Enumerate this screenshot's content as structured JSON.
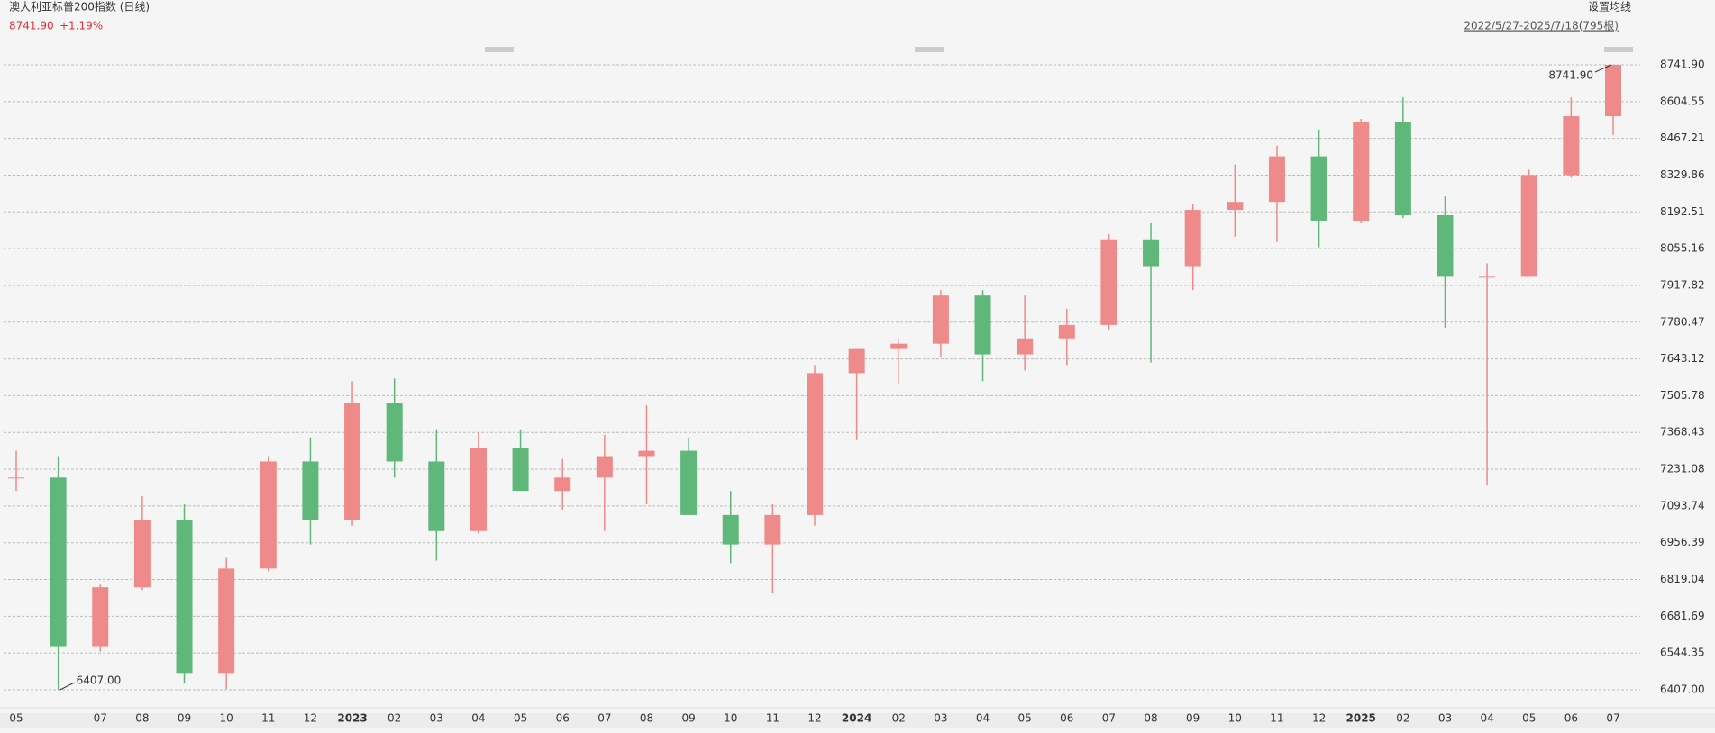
{
  "header": {
    "title": "澳大利亚标普200指数 (日线)",
    "price": "8741.90",
    "change": "+1.19%",
    "ma_setting": "设置均线",
    "range": "2022/5/27-2025/7/18(795根)"
  },
  "chart_data": {
    "type": "candlestick",
    "categories": [
      "05",
      null,
      "07",
      "08",
      "09",
      "10",
      "11",
      "12",
      "2023",
      "02",
      "03",
      "04",
      "05",
      "06",
      "07",
      "08",
      "09",
      "10",
      "11",
      "12",
      "2024",
      "02",
      "03",
      "04",
      "05",
      "06",
      "07",
      "08",
      "09",
      "10",
      "11",
      "12",
      "2025",
      "02",
      "03",
      "04",
      "05",
      "06",
      "07"
    ],
    "open": [
      7200,
      7200,
      6570,
      6790,
      7040,
      6470,
      6860,
      7260,
      7040,
      7480,
      7260,
      7000,
      7310,
      7150,
      7200,
      7280,
      7300,
      7060,
      6950,
      7060,
      7590,
      7680,
      7700,
      7880,
      7660,
      7720,
      7770,
      8090,
      7990,
      8200,
      8230,
      8400,
      8160,
      8530,
      8180,
      7950,
      7950,
      8330,
      8550
    ],
    "high": [
      7300,
      7280,
      6800,
      7130,
      7100,
      6900,
      7280,
      7350,
      7560,
      7570,
      7380,
      7370,
      7380,
      7270,
      7360,
      7470,
      7350,
      7150,
      7100,
      7620,
      7680,
      7720,
      7900,
      7900,
      7880,
      7830,
      8110,
      8150,
      8220,
      8370,
      8440,
      8500,
      8540,
      8620,
      8250,
      8000,
      8350,
      8620,
      8741.9
    ],
    "low": [
      7150,
      6407,
      6550,
      6780,
      6430,
      6410,
      6850,
      6950,
      7020,
      7200,
      6890,
      6990,
      7150,
      7080,
      7000,
      7100,
      7080,
      6880,
      6770,
      7020,
      7340,
      7550,
      7650,
      7560,
      7600,
      7620,
      7750,
      7630,
      7900,
      8100,
      8080,
      8060,
      8150,
      8170,
      7760,
      7170,
      7950,
      8320,
      8480
    ],
    "close": [
      7200,
      6570,
      6790,
      7040,
      6470,
      6860,
      7260,
      7040,
      7480,
      7260,
      7000,
      7310,
      7150,
      7200,
      7280,
      7300,
      7060,
      6950,
      7060,
      7590,
      7680,
      7700,
      7880,
      7660,
      7720,
      7770,
      8090,
      7990,
      8200,
      8230,
      8400,
      8160,
      8530,
      8180,
      7950,
      7950,
      8330,
      8550,
      8741.9
    ],
    "up_color": "#ef8a8a",
    "down_color": "#5fb77a",
    "ylim": [
      6407,
      8741.9
    ],
    "yticks": [
      {
        "value": 6407,
        "label": "6407.00"
      },
      6544.35,
      6681.69,
      6819.04,
      6956.39,
      7093.74,
      7231.08,
      7368.43,
      7505.78,
      7643.12,
      7780.47,
      7917.82,
      8055.16,
      8192.51,
      8329.86,
      8467.21,
      8604.55,
      {
        "value": 8741.9,
        "label": "8741.90"
      }
    ],
    "grid": true,
    "max_label": "8741.90",
    "min_label": "6407.00"
  }
}
